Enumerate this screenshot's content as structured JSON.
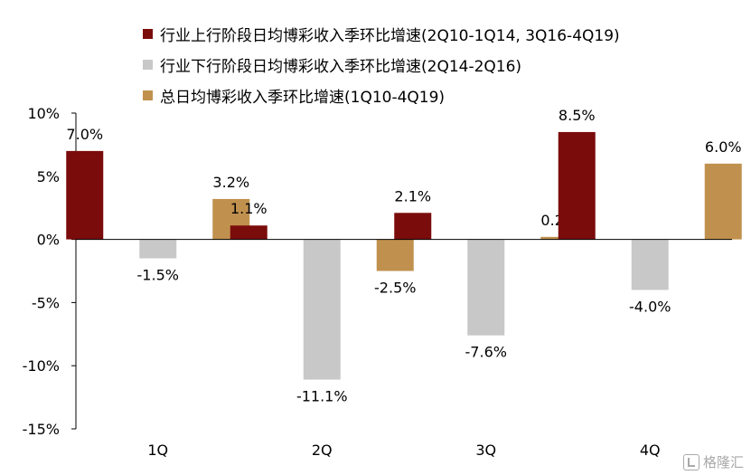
{
  "chart_data": {
    "type": "bar",
    "categories": [
      "1Q",
      "2Q",
      "3Q",
      "4Q"
    ],
    "series": [
      {
        "name": "行业上行阶段日均博彩收入季环比增速(2Q10-1Q14, 3Q16-4Q19)",
        "values": [
          7.0,
          1.1,
          2.1,
          8.5
        ],
        "color": "#7b0c0c"
      },
      {
        "name": "行业下行阶段日均博彩收入季环比增速(2Q14-2Q16)",
        "values": [
          -1.5,
          -11.1,
          -7.6,
          -4.0
        ],
        "color": "#c8c8c8"
      },
      {
        "name": "总日均博彩收入季环比增速(1Q10-4Q19)",
        "values": [
          3.2,
          -2.5,
          0.2,
          6.0
        ],
        "color": "#c0914e"
      }
    ],
    "y_ticks": [
      10,
      5,
      0,
      -5,
      -10,
      -15
    ],
    "y_tick_labels": [
      "10%",
      "5%",
      "0%",
      "-5%",
      "-10%",
      "-15%"
    ],
    "data_labels": [
      [
        "7.0%",
        "1.1%",
        "2.1%",
        "8.5%"
      ],
      [
        "-1.5%",
        "-11.1%",
        "-7.6%",
        "-4.0%"
      ],
      [
        "3.2%",
        "-2.5%",
        "0.2%",
        "6.0%"
      ]
    ],
    "ylim": [
      -15,
      10
    ],
    "xlabel": "",
    "ylabel": "",
    "grid": false,
    "legend_position": "top"
  },
  "watermark": {
    "text": "格隆汇"
  }
}
